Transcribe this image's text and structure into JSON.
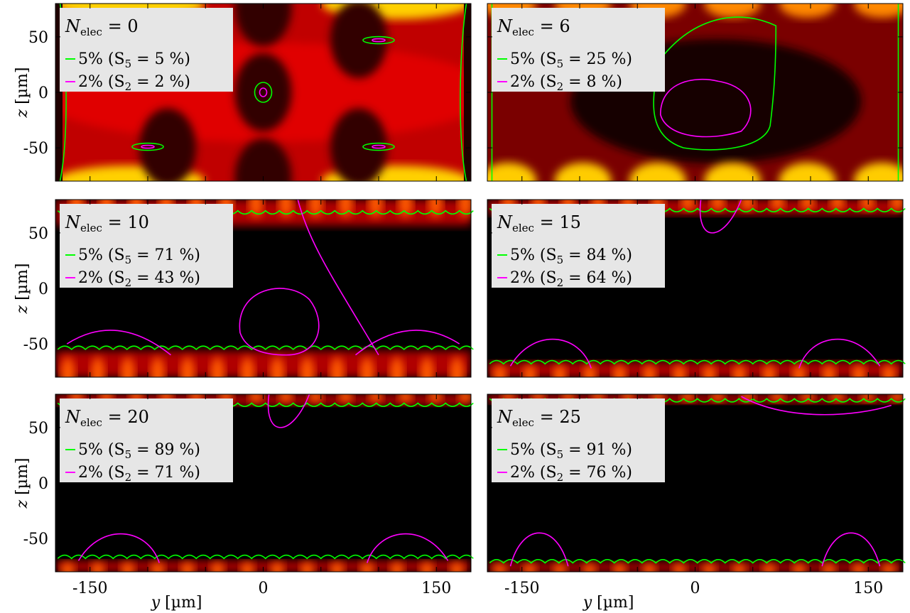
{
  "chart_data": {
    "type": "heatmap",
    "colormap": "hot",
    "xlabel_var": "y",
    "xlabel_unit": "[µm]",
    "ylabel_var": "z",
    "ylabel_unit": "[µm]",
    "xlim": [
      -180,
      180
    ],
    "ylim": [
      -80,
      80
    ],
    "xticks": [
      -150,
      0,
      150
    ],
    "yticks": [
      50,
      0,
      -50
    ],
    "xtick_labels": [
      "-150",
      "0",
      "150"
    ],
    "ytick_labels": [
      "50",
      "0",
      "-50"
    ],
    "contour_colors": {
      "5%": "#00ff00",
      "2%": "#ff00ff"
    },
    "panels": [
      {
        "n_elec": "0",
        "legend_title": "N",
        "legend_sub": "elec",
        "legend_eq": " = 0",
        "s5_label": "5% (S",
        "s5_sub": "5",
        "s5_val": " = 5 %)",
        "s2_label": "2% (S",
        "s2_sub": "2",
        "s2_val": " = 2 %)",
        "S5_percent": 5,
        "S2_percent": 2
      },
      {
        "n_elec": "6",
        "legend_title": "N",
        "legend_sub": "elec",
        "legend_eq": " = 6",
        "s5_label": "5% (S",
        "s5_sub": "5",
        "s5_val": " = 25 %)",
        "s2_label": "2% (S",
        "s2_sub": "2",
        "s2_val": " = 8 %)",
        "S5_percent": 25,
        "S2_percent": 8
      },
      {
        "n_elec": "10",
        "legend_title": "N",
        "legend_sub": "elec",
        "legend_eq": " = 10",
        "s5_label": "5% (S",
        "s5_sub": "5",
        "s5_val": " = 71 %)",
        "s2_label": "2% (S",
        "s2_sub": "2",
        "s2_val": " = 43 %)",
        "S5_percent": 71,
        "S2_percent": 43
      },
      {
        "n_elec": "15",
        "legend_title": "N",
        "legend_sub": "elec",
        "legend_eq": " = 15",
        "s5_label": "5% (S",
        "s5_sub": "5",
        "s5_val": " = 84 %)",
        "s2_label": "2% (S",
        "s2_sub": "2",
        "s2_val": " = 64 %)",
        "S5_percent": 84,
        "S2_percent": 64
      },
      {
        "n_elec": "20",
        "legend_title": "N",
        "legend_sub": "elec",
        "legend_eq": " = 20",
        "s5_label": "5% (S",
        "s5_sub": "5",
        "s5_val": " = 89 %)",
        "s2_label": "2% (S",
        "s2_sub": "2",
        "s2_val": " = 71 %)",
        "S5_percent": 89,
        "S2_percent": 71
      },
      {
        "n_elec": "25",
        "legend_title": "N",
        "legend_sub": "elec",
        "legend_eq": " = 25",
        "s5_label": "5% (S",
        "s5_sub": "5",
        "s5_val": " = 91 %)",
        "s2_label": "2% (S",
        "s2_sub": "2",
        "s2_val": " = 76 %)",
        "S5_percent": 91,
        "S2_percent": 76
      }
    ]
  }
}
